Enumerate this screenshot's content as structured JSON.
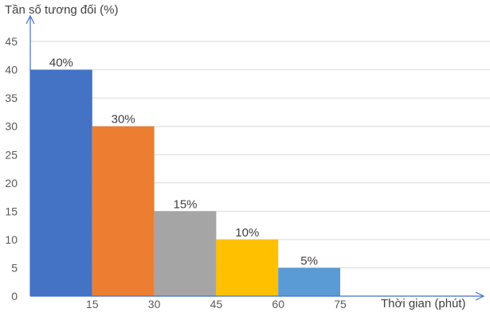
{
  "chart_data": {
    "type": "bar",
    "ylabel": "Tần số tương đối (%)",
    "xlabel": "Thời gian (phút)",
    "bin_edges": [
      0,
      15,
      30,
      45,
      60,
      75
    ],
    "x_tick_labels": [
      "15",
      "30",
      "45",
      "60",
      "75"
    ],
    "values": [
      40,
      30,
      15,
      10,
      5
    ],
    "data_labels": [
      "40%",
      "30%",
      "15%",
      "10%",
      "5%"
    ],
    "colors": [
      "#4472c4",
      "#ed7d31",
      "#a5a5a5",
      "#ffc000",
      "#5b9bd5"
    ],
    "ylim": [
      0,
      50
    ],
    "y_ticks": [
      0,
      5,
      10,
      15,
      20,
      25,
      30,
      35,
      40,
      45
    ],
    "grid": true
  }
}
